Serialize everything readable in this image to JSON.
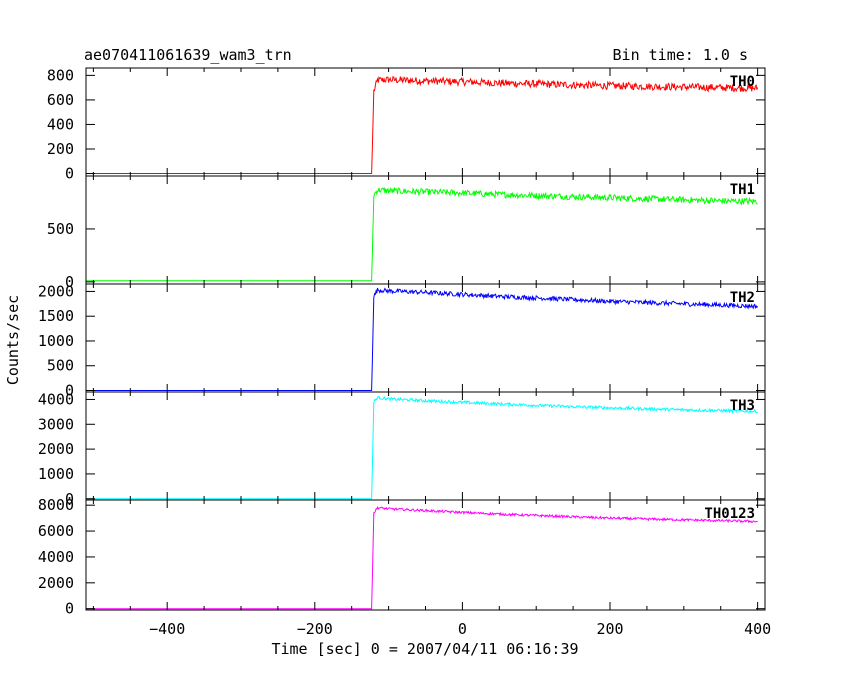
{
  "chart_data": {
    "type": "line",
    "title": "ae070411061639_wam3_trn",
    "bin_time_label": "Bin time: 1.0 s",
    "xlabel": "Time [sec] 0 = 2007/04/11 06:16:39",
    "ylabel": "Counts/sec",
    "xlim": [
      -510,
      410
    ],
    "x_ticks": [
      -400,
      -200,
      0,
      200,
      400
    ],
    "x_tick_labels": [
      "−400",
      "−200",
      "0",
      "200",
      "400"
    ],
    "grid": false,
    "onset_x": -123,
    "panels": [
      {
        "name": "TH0",
        "color": "#ff0000",
        "ylim": [
          -20,
          860
        ],
        "yticks": [
          0,
          200,
          400,
          600,
          800
        ],
        "ytick_labels": [
          "0",
          "200",
          "400",
          "600",
          "800"
        ],
        "points": [
          [
            -510,
            0
          ],
          [
            -123,
            0
          ],
          [
            -120,
            670
          ],
          [
            -115,
            760
          ],
          [
            -100,
            765
          ],
          [
            -50,
            755
          ],
          [
            0,
            748
          ],
          [
            50,
            738
          ],
          [
            100,
            730
          ],
          [
            150,
            722
          ],
          [
            200,
            715
          ],
          [
            250,
            710
          ],
          [
            300,
            705
          ],
          [
            350,
            700
          ],
          [
            400,
            695
          ]
        ],
        "noise": 30
      },
      {
        "name": "TH1",
        "color": "#00ff00",
        "ylim": [
          -20,
          1000
        ],
        "yticks": [
          0,
          500
        ],
        "ytick_labels": [
          "0",
          "500"
        ],
        "points": [
          [
            -510,
            10
          ],
          [
            -123,
            10
          ],
          [
            -120,
            820
          ],
          [
            -115,
            870
          ],
          [
            -100,
            860
          ],
          [
            -50,
            850
          ],
          [
            0,
            840
          ],
          [
            50,
            825
          ],
          [
            100,
            815
          ],
          [
            150,
            805
          ],
          [
            200,
            795
          ],
          [
            250,
            785
          ],
          [
            300,
            775
          ],
          [
            350,
            765
          ],
          [
            400,
            760
          ]
        ],
        "noise": 30
      },
      {
        "name": "TH2",
        "color": "#0000ff",
        "ylim": [
          -30,
          2150
        ],
        "yticks": [
          0,
          500,
          1000,
          1500,
          2000
        ],
        "ytick_labels": [
          "0",
          "500",
          "1000",
          "1500",
          "2000"
        ],
        "points": [
          [
            -510,
            0
          ],
          [
            -123,
            0
          ],
          [
            -120,
            1900
          ],
          [
            -115,
            2030
          ],
          [
            -100,
            2010
          ],
          [
            -50,
            1980
          ],
          [
            0,
            1940
          ],
          [
            50,
            1900
          ],
          [
            100,
            1870
          ],
          [
            150,
            1835
          ],
          [
            200,
            1800
          ],
          [
            250,
            1775
          ],
          [
            300,
            1750
          ],
          [
            350,
            1725
          ],
          [
            400,
            1700
          ]
        ],
        "noise": 45
      },
      {
        "name": "TH3",
        "color": "#00ffff",
        "ylim": [
          -50,
          4300
        ],
        "yticks": [
          0,
          1000,
          2000,
          3000,
          4000
        ],
        "ytick_labels": [
          "0",
          "1000",
          "2000",
          "3000",
          "4000"
        ],
        "points": [
          [
            -510,
            0
          ],
          [
            -123,
            0
          ],
          [
            -120,
            3900
          ],
          [
            -115,
            4080
          ],
          [
            -100,
            4020
          ],
          [
            -50,
            3950
          ],
          [
            0,
            3880
          ],
          [
            50,
            3820
          ],
          [
            100,
            3760
          ],
          [
            150,
            3710
          ],
          [
            200,
            3660
          ],
          [
            250,
            3620
          ],
          [
            300,
            3580
          ],
          [
            350,
            3550
          ],
          [
            400,
            3520
          ]
        ],
        "noise": 60
      },
      {
        "name": "TH0123",
        "color": "#ff00ff",
        "ylim": [
          -100,
          8400
        ],
        "yticks": [
          0,
          2000,
          4000,
          6000,
          8000
        ],
        "ytick_labels": [
          "0",
          "2000",
          "4000",
          "6000",
          "8000"
        ],
        "points": [
          [
            -510,
            0
          ],
          [
            -123,
            0
          ],
          [
            -120,
            7400
          ],
          [
            -115,
            7800
          ],
          [
            -100,
            7720
          ],
          [
            -50,
            7580
          ],
          [
            0,
            7440
          ],
          [
            50,
            7310
          ],
          [
            100,
            7200
          ],
          [
            150,
            7100
          ],
          [
            200,
            7000
          ],
          [
            250,
            6930
          ],
          [
            300,
            6870
          ],
          [
            350,
            6800
          ],
          [
            400,
            6740
          ]
        ],
        "noise": 90
      }
    ]
  }
}
